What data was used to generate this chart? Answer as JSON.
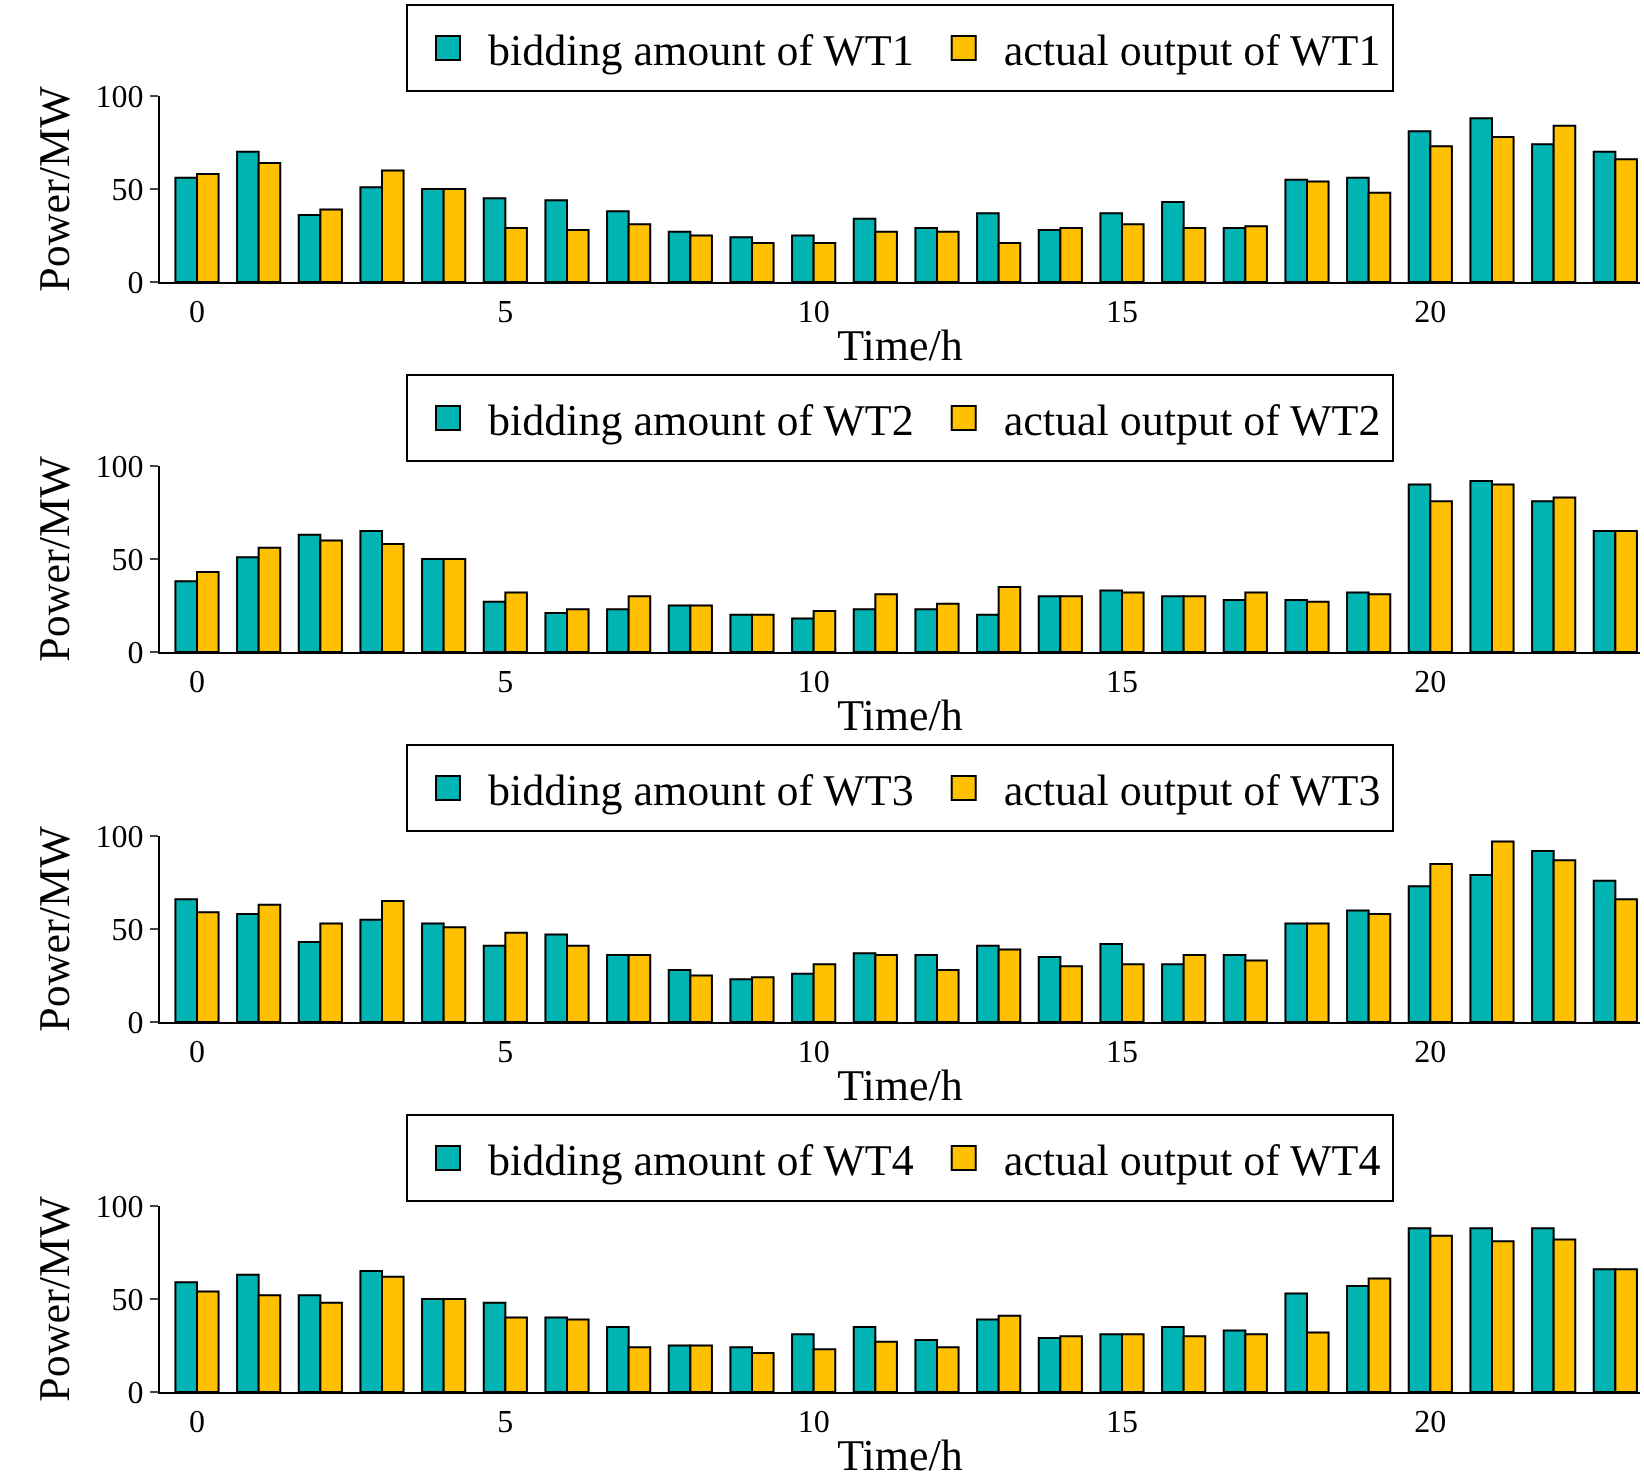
{
  "chart_data": [
    {
      "type": "bar",
      "x": [
        0,
        1,
        2,
        3,
        4,
        5,
        6,
        7,
        8,
        9,
        10,
        11,
        12,
        13,
        14,
        15,
        16,
        17,
        18,
        19,
        20,
        21,
        22,
        23
      ],
      "xlabel": "Time/h",
      "ylabel": "Power/MW",
      "xlim": [
        -0.6,
        23.4
      ],
      "xticks": [
        0,
        5,
        10,
        15,
        20
      ],
      "ylim": [
        0,
        100
      ],
      "yticks": [
        0,
        50,
        100
      ],
      "legend": "top",
      "series": [
        {
          "name": "bidding amount of WT1",
          "color": "#00b4b4",
          "values": [
            56,
            70,
            36,
            51,
            50,
            45,
            44,
            38,
            27,
            24,
            25,
            34,
            29,
            37,
            28,
            37,
            43,
            29,
            55,
            56,
            81,
            88,
            74,
            70
          ]
        },
        {
          "name": "actual output of WT1",
          "color": "#ffc000",
          "values": [
            58,
            64,
            39,
            60,
            50,
            29,
            28,
            31,
            25,
            21,
            21,
            27,
            27,
            21,
            29,
            31,
            29,
            30,
            54,
            48,
            73,
            78,
            84,
            66
          ]
        }
      ]
    },
    {
      "type": "bar",
      "x": [
        0,
        1,
        2,
        3,
        4,
        5,
        6,
        7,
        8,
        9,
        10,
        11,
        12,
        13,
        14,
        15,
        16,
        17,
        18,
        19,
        20,
        21,
        22,
        23
      ],
      "xlabel": "Time/h",
      "ylabel": "Power/MW",
      "xlim": [
        -0.6,
        23.4
      ],
      "xticks": [
        0,
        5,
        10,
        15,
        20
      ],
      "ylim": [
        0,
        100
      ],
      "yticks": [
        0,
        50,
        100
      ],
      "legend": "top",
      "series": [
        {
          "name": "bidding amount of WT2",
          "color": "#00b4b4",
          "values": [
            38,
            51,
            63,
            65,
            50,
            27,
            21,
            23,
            25,
            20,
            18,
            23,
            23,
            20,
            30,
            33,
            30,
            28,
            28,
            32,
            90,
            92,
            81,
            65
          ]
        },
        {
          "name": "actual output of WT2",
          "color": "#ffc000",
          "values": [
            43,
            56,
            60,
            58,
            50,
            32,
            23,
            30,
            25,
            20,
            22,
            31,
            26,
            35,
            30,
            32,
            30,
            32,
            27,
            31,
            81,
            90,
            83,
            65
          ]
        }
      ]
    },
    {
      "type": "bar",
      "x": [
        0,
        1,
        2,
        3,
        4,
        5,
        6,
        7,
        8,
        9,
        10,
        11,
        12,
        13,
        14,
        15,
        16,
        17,
        18,
        19,
        20,
        21,
        22,
        23
      ],
      "xlabel": "Time/h",
      "ylabel": "Power/MW",
      "xlim": [
        -0.6,
        23.4
      ],
      "xticks": [
        0,
        5,
        10,
        15,
        20
      ],
      "ylim": [
        0,
        100
      ],
      "yticks": [
        0,
        50,
        100
      ],
      "legend": "top",
      "series": [
        {
          "name": "bidding amount of WT3",
          "color": "#00b4b4",
          "values": [
            66,
            58,
            43,
            55,
            53,
            41,
            47,
            36,
            28,
            23,
            26,
            37,
            36,
            41,
            35,
            42,
            31,
            36,
            53,
            60,
            73,
            79,
            92,
            76
          ]
        },
        {
          "name": "actual output of WT3",
          "color": "#ffc000",
          "values": [
            59,
            63,
            53,
            65,
            51,
            48,
            41,
            36,
            25,
            24,
            31,
            36,
            28,
            39,
            30,
            31,
            36,
            33,
            53,
            58,
            85,
            97,
            87,
            66
          ]
        }
      ]
    },
    {
      "type": "bar",
      "x": [
        0,
        1,
        2,
        3,
        4,
        5,
        6,
        7,
        8,
        9,
        10,
        11,
        12,
        13,
        14,
        15,
        16,
        17,
        18,
        19,
        20,
        21,
        22,
        23
      ],
      "xlabel": "Time/h",
      "ylabel": "Power/MW",
      "xlim": [
        -0.6,
        23.4
      ],
      "xticks": [
        0,
        5,
        10,
        15,
        20
      ],
      "ylim": [
        0,
        100
      ],
      "yticks": [
        0,
        50,
        100
      ],
      "legend": "top",
      "series": [
        {
          "name": "bidding amount of WT4",
          "color": "#00b4b4",
          "values": [
            59,
            63,
            52,
            65,
            50,
            48,
            40,
            35,
            25,
            24,
            31,
            35,
            28,
            39,
            29,
            31,
            35,
            33,
            53,
            57,
            88,
            88,
            88,
            66
          ]
        },
        {
          "name": "actual output of WT4",
          "color": "#ffc000",
          "values": [
            54,
            52,
            48,
            62,
            50,
            40,
            39,
            24,
            25,
            21,
            23,
            27,
            24,
            41,
            30,
            31,
            30,
            31,
            32,
            61,
            84,
            81,
            82,
            66
          ]
        }
      ]
    }
  ]
}
